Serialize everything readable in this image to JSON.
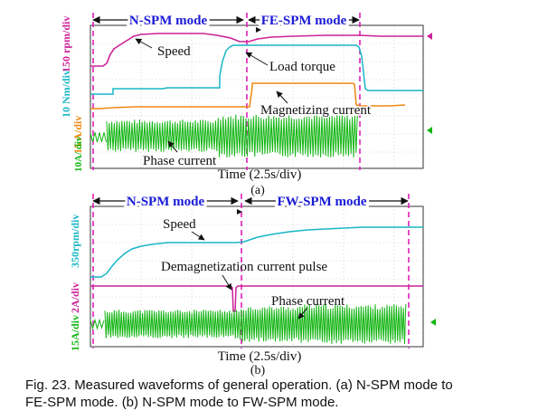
{
  "figure": {
    "caption": {
      "line1": "Fig. 23. Measured waveforms of general operation. (a) N-SPM mode to",
      "line2": "FE-SPM mode. (b) N-SPM mode to FW-SPM mode."
    }
  },
  "chart_data": [
    {
      "type": "line",
      "panel": "a",
      "sublabel": "(a)",
      "xlabel": "Time (2.5s/div)",
      "modes": [
        "N-SPM mode",
        "FE-SPM mode"
      ],
      "scale_labels": [
        {
          "text": "150 rpm/div",
          "color": "#cc2299"
        },
        {
          "text": "10 Nm/div",
          "color": "#19b6c6"
        },
        {
          "text": "15 A/div",
          "color": "#ee8a10"
        },
        {
          "text": "10A/ div",
          "color": "#12b512"
        }
      ],
      "series": [
        {
          "name": "Speed",
          "color": "#cc2299"
        },
        {
          "name": "Load torque",
          "color": "#19b6c6"
        },
        {
          "name": "Magnetizing current",
          "color": "#ee8a10"
        },
        {
          "name": "Phase current",
          "color": "#12b512"
        }
      ],
      "grid": true
    },
    {
      "type": "line",
      "panel": "b",
      "sublabel": "(b)",
      "xlabel": "Time (2.5s/div)",
      "modes": [
        "N-SPM mode",
        "FW-SPM mode"
      ],
      "scale_labels": [
        {
          "text": "350rpm/div",
          "color": "#19b6c6"
        },
        {
          "text": "2A/div",
          "color": "#cc2299"
        },
        {
          "text": "15A/div",
          "color": "#12b512"
        }
      ],
      "series": [
        {
          "name": "Speed",
          "color": "#19b6c6"
        },
        {
          "name": "Demagnetization current pulse",
          "color": "#cc2299"
        },
        {
          "name": "Phase current",
          "color": "#12b512"
        }
      ],
      "grid": true
    }
  ]
}
